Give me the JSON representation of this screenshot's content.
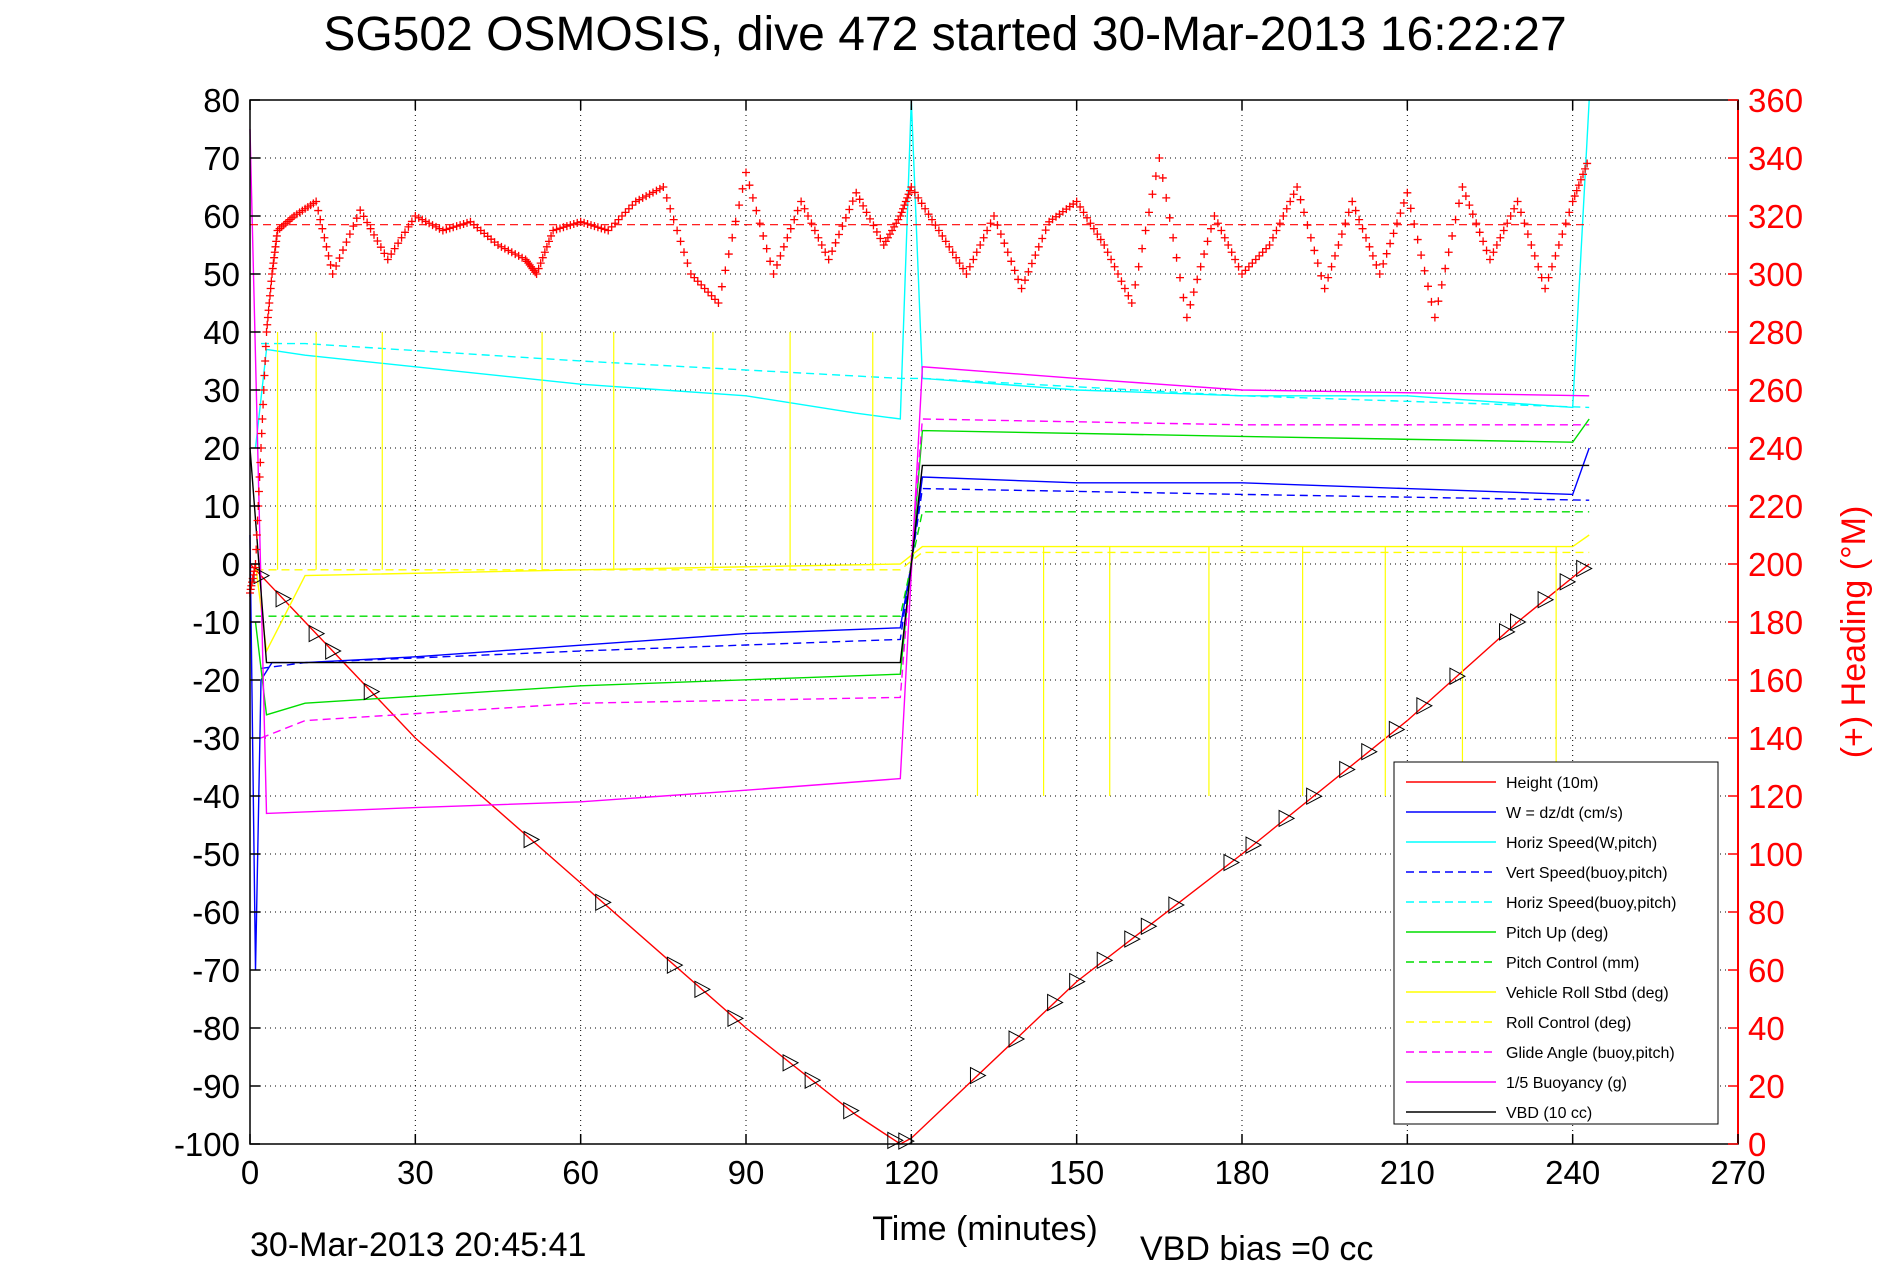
{
  "chart_data": {
    "type": "line",
    "title": "SG502 OSMOSIS, dive 472 started 30-Mar-2013 16:22:27",
    "xlabel": "Time (minutes)",
    "ylabel_right": "(+) Heading (°M)",
    "xlim": [
      0,
      270
    ],
    "ylim_left": [
      -100,
      80
    ],
    "ylim_right": [
      0,
      360
    ],
    "x_ticks": [
      "0",
      "30",
      "60",
      "90",
      "120",
      "150",
      "180",
      "210",
      "240",
      "270"
    ],
    "y_left_ticks": [
      "80",
      "70",
      "60",
      "50",
      "40",
      "30",
      "20",
      "10",
      "0",
      "-10",
      "-20",
      "-30",
      "-40",
      "-50",
      "-60",
      "-70",
      "-80",
      "-90",
      "-100"
    ],
    "y_right_ticks": [
      "360",
      "340",
      "320",
      "300",
      "280",
      "260",
      "240",
      "220",
      "200",
      "180",
      "160",
      "140",
      "120",
      "100",
      "80",
      "60",
      "40",
      "20",
      "0"
    ],
    "grid": true,
    "legend_position": "bottom-right",
    "series": [
      {
        "name": "Height (10m)",
        "color": "#ff0000",
        "style": "solid",
        "x": [
          0,
          1,
          10,
          30,
          60,
          90,
          110,
          118,
          120,
          130,
          150,
          180,
          210,
          230,
          243
        ],
        "y": [
          0,
          -1,
          -10,
          -30,
          -55,
          -80,
          -95,
          -100,
          -99,
          -90,
          -72,
          -50,
          -27,
          -10,
          0
        ]
      },
      {
        "name": "W = dz/dt (cm/s)",
        "color": "#0000ff",
        "style": "solid",
        "x": [
          0,
          1,
          2,
          4,
          10,
          30,
          60,
          90,
          118,
          120,
          122,
          150,
          180,
          210,
          240,
          243
        ],
        "y": [
          5,
          -70,
          -20,
          -17,
          -17,
          -16,
          -14,
          -12,
          -11,
          0,
          15,
          14,
          14,
          13,
          12,
          20
        ]
      },
      {
        "name": "Horiz Speed(W,pitch)",
        "color": "#00ffff",
        "style": "solid",
        "x": [
          1,
          3,
          10,
          30,
          60,
          90,
          110,
          118,
          120,
          122,
          150,
          180,
          210,
          240,
          243
        ],
        "y": [
          20,
          37,
          36,
          34,
          31,
          29,
          26,
          25,
          80,
          32,
          30,
          29,
          29,
          27,
          80
        ]
      },
      {
        "name": "Vert Speed(buoy,pitch)",
        "color": "#0000ff",
        "style": "dashed",
        "x": [
          2,
          10,
          60,
          118,
          122,
          180,
          243
        ],
        "y": [
          -18,
          -17,
          -15,
          -13,
          13,
          12,
          11
        ]
      },
      {
        "name": "Horiz Speed(buoy,pitch)",
        "color": "#00ffff",
        "style": "dashed",
        "x": [
          2,
          10,
          60,
          118,
          122,
          180,
          243
        ],
        "y": [
          38,
          38,
          35,
          32,
          32,
          29,
          27
        ]
      },
      {
        "name": "Pitch Up (deg)",
        "color": "#00dd00",
        "style": "solid",
        "x": [
          1,
          3,
          10,
          60,
          118,
          120,
          122,
          180,
          240,
          243
        ],
        "y": [
          -10,
          -26,
          -24,
          -21,
          -19,
          0,
          23,
          22,
          21,
          25
        ]
      },
      {
        "name": "Pitch Control (mm)",
        "color": "#00dd00",
        "style": "dashed",
        "x": [
          1,
          118,
          122,
          243
        ],
        "y": [
          -9,
          -9,
          9,
          9
        ]
      },
      {
        "name": "Vehicle Roll Stbd (deg)",
        "color": "#ffff00",
        "style": "solid",
        "x": [
          1,
          3,
          10,
          60,
          118,
          122,
          180,
          240,
          243
        ],
        "y": [
          0,
          -15,
          -2,
          -1,
          0,
          3,
          3,
          3,
          5
        ]
      },
      {
        "name": "Roll Control (deg)",
        "color": "#ffff00",
        "style": "dashed",
        "x": [
          1,
          118,
          122,
          243
        ],
        "y": [
          -1,
          -1,
          2,
          2
        ]
      },
      {
        "name": "Glide Angle (buoy,pitch)",
        "color": "#ff00ff",
        "style": "dashed",
        "x": [
          2,
          10,
          60,
          118,
          122,
          180,
          243
        ],
        "y": [
          -30,
          -27,
          -24,
          -23,
          25,
          24,
          24
        ]
      },
      {
        "name": "1/5 Buoyancy (g)",
        "color": "#ff00ff",
        "style": "solid",
        "x": [
          0,
          3,
          30,
          60,
          90,
          118,
          122,
          150,
          180,
          243
        ],
        "y": [
          75,
          -43,
          -42,
          -41,
          -39,
          -37,
          34,
          32,
          30,
          29
        ]
      },
      {
        "name": "VBD (10 cc)",
        "color": "#000000",
        "style": "solid",
        "x": [
          0,
          3,
          118,
          122,
          243
        ],
        "y": [
          20,
          -17,
          -17,
          17,
          17
        ]
      }
    ],
    "heading": {
      "color": "#ff0000",
      "marker": "+",
      "reference_line_value": 317,
      "x": [
        0,
        1,
        2,
        3,
        4,
        5,
        8,
        12,
        15,
        20,
        25,
        30,
        35,
        40,
        45,
        50,
        52,
        55,
        60,
        65,
        70,
        75,
        80,
        85,
        90,
        95,
        100,
        105,
        110,
        115,
        118,
        120,
        125,
        130,
        135,
        140,
        145,
        150,
        155,
        160,
        165,
        170,
        175,
        180,
        185,
        190,
        195,
        200,
        205,
        210,
        215,
        220,
        225,
        230,
        235,
        240,
        243
      ],
      "y": [
        190,
        200,
        240,
        280,
        300,
        315,
        320,
        325,
        300,
        322,
        305,
        320,
        315,
        318,
        310,
        305,
        300,
        315,
        318,
        315,
        325,
        330,
        300,
        290,
        335,
        300,
        325,
        305,
        328,
        310,
        320,
        330,
        315,
        300,
        320,
        295,
        318,
        325,
        310,
        290,
        340,
        285,
        320,
        300,
        310,
        330,
        295,
        325,
        300,
        328,
        285,
        330,
        305,
        325,
        295,
        325,
        340
      ]
    },
    "footer_timestamp": "30-Mar-2013 20:45:41",
    "footer_note": "VBD bias =0 cc"
  }
}
